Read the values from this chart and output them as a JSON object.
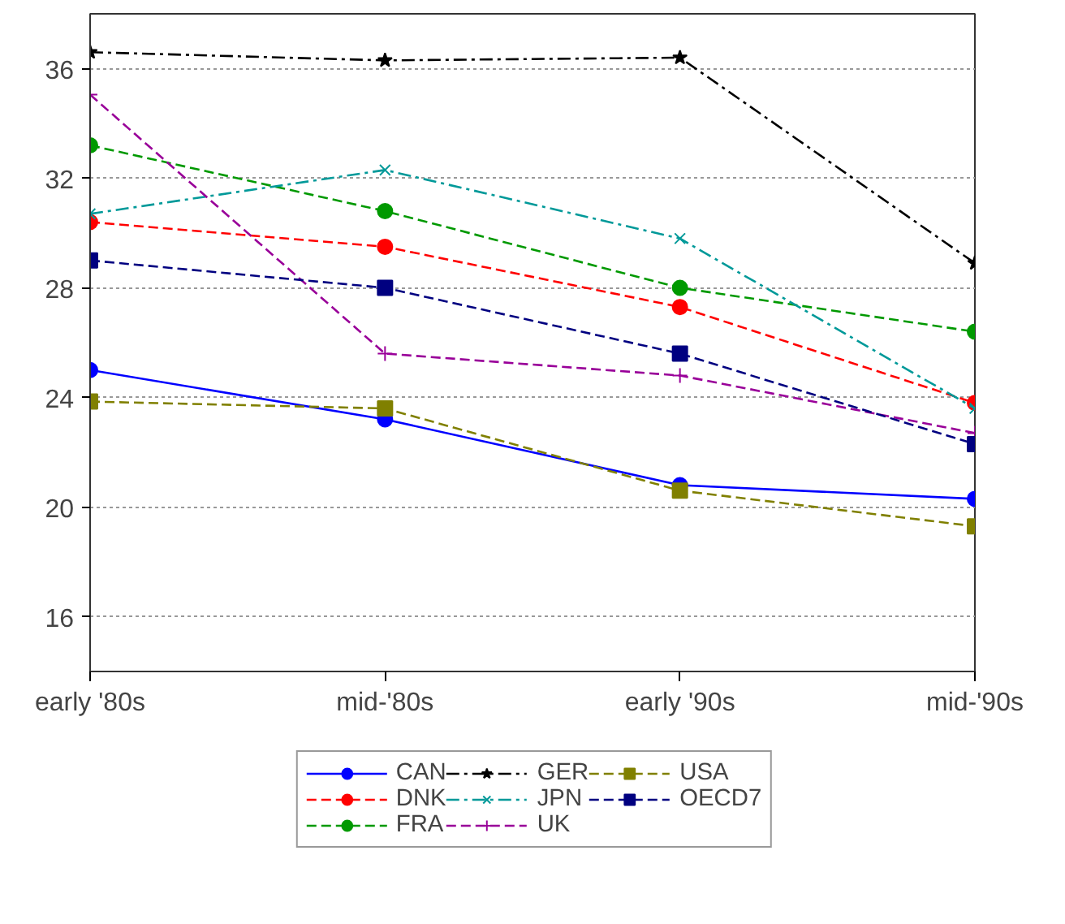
{
  "chart_data": {
    "type": "line",
    "categories": [
      "early '80s",
      "mid-'80s",
      "early '90s",
      "mid-'90s"
    ],
    "ylim": [
      14,
      38
    ],
    "yticks": [
      16,
      20,
      24,
      28,
      32,
      36
    ],
    "grid": "y",
    "legend": "bottom",
    "series": [
      {
        "name": "CAN",
        "color": "#0000ff",
        "line_style": "solid",
        "marker": "circle",
        "values": [
          25.0,
          23.2,
          20.8,
          20.3
        ]
      },
      {
        "name": "DNK",
        "color": "#ff0000",
        "line_style": "dashed",
        "marker": "circle",
        "values": [
          30.4,
          29.5,
          27.3,
          23.8
        ]
      },
      {
        "name": "FRA",
        "color": "#009900",
        "line_style": "dashed",
        "marker": "circle",
        "values": [
          33.2,
          30.8,
          28.0,
          26.4
        ]
      },
      {
        "name": "GER",
        "color": "#000000",
        "line_style": "dashdot",
        "marker": "star",
        "values": [
          36.6,
          36.3,
          36.4,
          28.9
        ]
      },
      {
        "name": "JPN",
        "color": "#009999",
        "line_style": "dashdot",
        "marker": "x",
        "values": [
          30.7,
          32.3,
          29.8,
          23.6
        ]
      },
      {
        "name": "UK",
        "color": "#990099",
        "line_style": "dashed",
        "marker": "cross",
        "values": [
          35.05,
          25.6,
          24.8,
          22.7
        ]
      },
      {
        "name": "USA",
        "color": "#808000",
        "line_style": "dashed",
        "marker": "square",
        "values": [
          23.85,
          23.6,
          20.6,
          19.3
        ]
      },
      {
        "name": "OECD7",
        "color": "#000080",
        "line_style": "dashed",
        "marker": "square",
        "values": [
          29.0,
          28.0,
          25.6,
          22.3
        ]
      }
    ]
  }
}
